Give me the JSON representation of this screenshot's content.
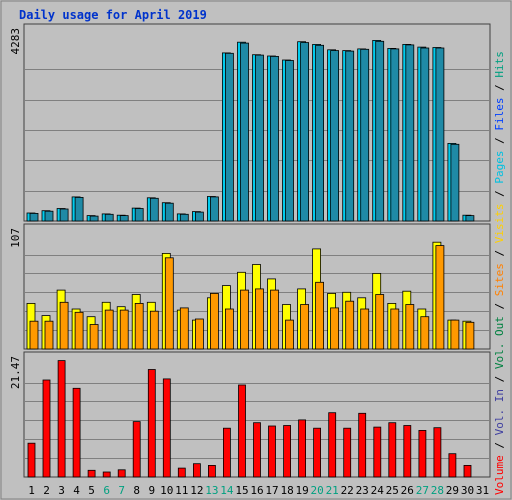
{
  "chart_data": {
    "type": "bar",
    "title": "Daily usage for April 2019",
    "categories": [
      "1",
      "2",
      "3",
      "4",
      "5",
      "6",
      "7",
      "8",
      "9",
      "10",
      "11",
      "12",
      "13",
      "14",
      "15",
      "16",
      "17",
      "18",
      "19",
      "20",
      "21",
      "22",
      "23",
      "24",
      "25",
      "26",
      "27",
      "28",
      "29",
      "30",
      "31"
    ],
    "weekend_days": [
      "6",
      "7",
      "13",
      "14",
      "20",
      "21",
      "27",
      "28"
    ],
    "panels": [
      {
        "id": "hits",
        "ymax": 4283,
        "ymax_label": "4283",
        "series": [
          {
            "name": "Hits",
            "color": "#00ccee",
            "values": [
              180,
              230,
              280,
              540,
              120,
              160,
              130,
              290,
              520,
              410,
              160,
              210,
              550,
              3770,
              4010,
              3730,
              3700,
              3610,
              4020,
              3960,
              3840,
              3820,
              3860,
              4050,
              3870,
              3960,
              3900,
              3890,
              1740,
              130,
              0
            ]
          },
          {
            "name": "Files",
            "color": "#1f8aa6",
            "values": [
              170,
              220,
              270,
              530,
              110,
              150,
              120,
              280,
              510,
              400,
              150,
              200,
              540,
              3760,
              3990,
              3720,
              3690,
              3600,
              4000,
              3940,
              3820,
              3810,
              3850,
              4030,
              3860,
              3950,
              3880,
              3880,
              1720,
              120,
              0
            ]
          }
        ]
      },
      {
        "id": "pages",
        "ymax": 107,
        "ymax_label": "107",
        "series": [
          {
            "name": "Pages",
            "color": "#ffff00",
            "values": [
              41,
              30,
              53,
              36,
              29,
              42,
              38,
              49,
              42,
              86,
              35,
              26,
              46,
              57,
              69,
              76,
              63,
              40,
              54,
              90,
              50,
              51,
              46,
              68,
              41,
              52,
              36,
              96,
              26,
              25,
              0
            ]
          },
          {
            "name": "Visits",
            "color": "#ff9900",
            "values": [
              25,
              25,
              42,
              33,
              22,
              35,
              35,
              41,
              34,
              82,
              37,
              27,
              50,
              36,
              53,
              54,
              53,
              26,
              40,
              60,
              37,
              43,
              36,
              49,
              36,
              40,
              29,
              93,
              26,
              24,
              0
            ]
          }
        ]
      },
      {
        "id": "volume",
        "ymax": 21.47,
        "ymax_label": "21.47",
        "series": [
          {
            "name": "Volume",
            "color": "#ff0000",
            "values": [
              6.1,
              17.5,
              21.0,
              16.0,
              1.2,
              0.9,
              1.3,
              10.0,
              19.4,
              17.7,
              1.6,
              2.4,
              2.1,
              8.8,
              16.6,
              9.8,
              9.2,
              9.3,
              10.3,
              8.8,
              11.6,
              8.8,
              11.5,
              9.0,
              9.8,
              9.3,
              8.4,
              8.9,
              4.2,
              2.1,
              0
            ]
          }
        ]
      }
    ],
    "legend": [
      {
        "text": "Volume",
        "color": "#ff0000"
      },
      {
        "text": " / ",
        "color": "#000000"
      },
      {
        "text": "Vol. In",
        "color": "#4040a0"
      },
      {
        "text": " / ",
        "color": "#000000"
      },
      {
        "text": "Vol. Out",
        "color": "#008040"
      },
      {
        "text": " / ",
        "color": "#000000"
      },
      {
        "text": "Sites",
        "color": "#ff8000"
      },
      {
        "text": " / ",
        "color": "#000000"
      },
      {
        "text": "Visits",
        "color": "#ffd000"
      },
      {
        "text": " / ",
        "color": "#000000"
      },
      {
        "text": "Pages",
        "color": "#00c0e0"
      },
      {
        "text": " / ",
        "color": "#000000"
      },
      {
        "text": "Files",
        "color": "#0040ff"
      },
      {
        "text": " / ",
        "color": "#000000"
      },
      {
        "text": "Hits",
        "color": "#00a080"
      }
    ],
    "grid": true,
    "legend_position": "right-vertical"
  },
  "colors": {
    "background": "#c0c0c0",
    "gridline": "#808080",
    "weekday_label": "#000000",
    "weekend_label": "#00a080"
  }
}
